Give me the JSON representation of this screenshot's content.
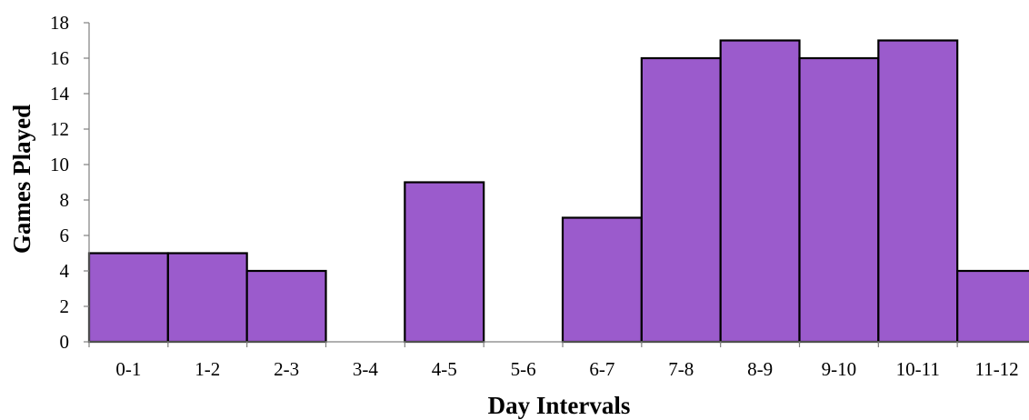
{
  "chart_data": {
    "type": "bar",
    "title": "",
    "xlabel": "Day Intervals",
    "ylabel": "Games Played",
    "categories": [
      "0-1",
      "1-2",
      "2-3",
      "3-4",
      "4-5",
      "5-6",
      "6-7",
      "7-8",
      "8-9",
      "9-10",
      "10-11",
      "11-12"
    ],
    "values": [
      5,
      5,
      4,
      0,
      9,
      0,
      7,
      16,
      17,
      16,
      17,
      4
    ],
    "ylim": [
      0,
      18
    ],
    "yticks": [
      "0",
      "2",
      "4",
      "6",
      "8",
      "10",
      "12",
      "14",
      "16",
      "18"
    ],
    "grid": false,
    "legend": "none",
    "bar_color": "#9b5bcc",
    "bar_edge_color": "#000000"
  }
}
